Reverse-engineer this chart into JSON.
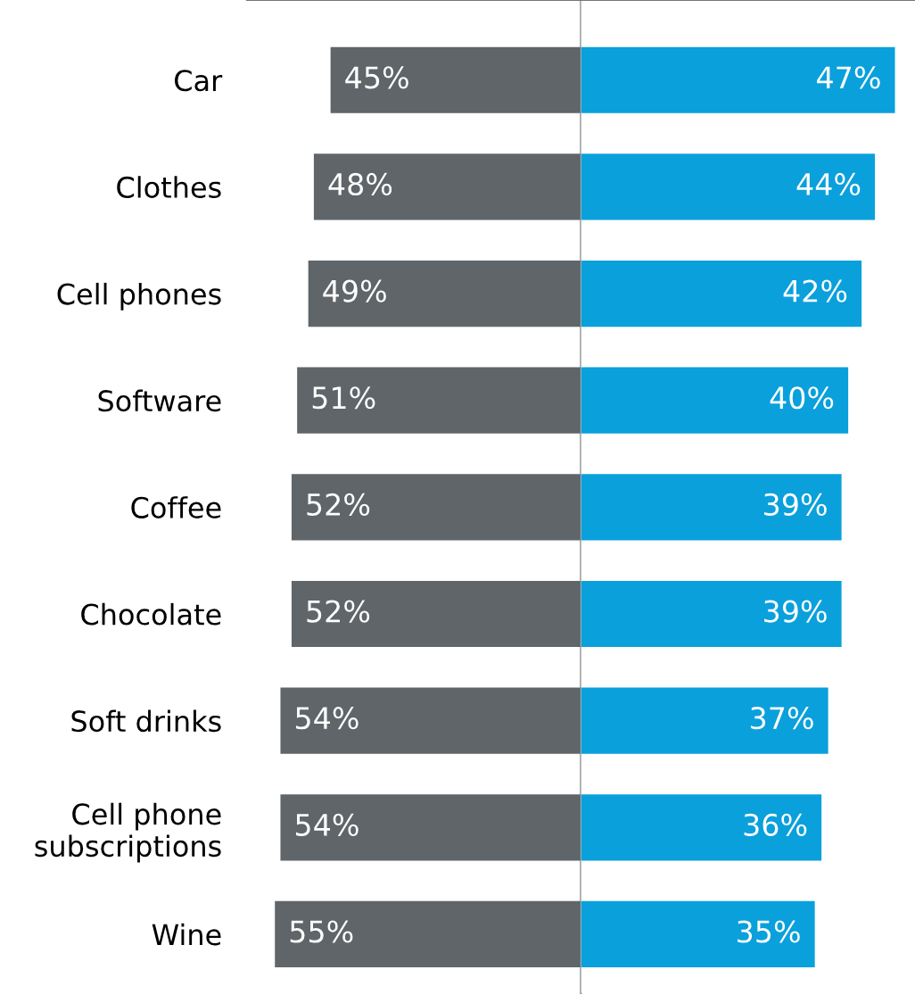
{
  "chart_data": [
    {
      "type": "bar",
      "orientation": "horizontal",
      "xlim": [
        60,
        0
      ],
      "tick_labels": "y",
      "grid": false,
      "legend": false,
      "categories": [
        "Car",
        "Clothes",
        "Cell phones",
        "Software",
        "Coffee",
        "Chocolate",
        "Soft drinks",
        "Cell phone\nsubscriptions",
        "Wine"
      ],
      "series": [
        {
          "color": "#5f6569",
          "values": [
            45,
            48,
            49,
            51,
            52,
            52,
            54,
            54,
            55
          ],
          "value_labels": [
            "45%",
            "48%",
            "49%",
            "51%",
            "52%",
            "52%",
            "54%",
            "54%",
            "55%"
          ]
        }
      ]
    },
    {
      "type": "bar",
      "orientation": "horizontal",
      "xlim": [
        0,
        50
      ],
      "tick_labels": false,
      "grid": false,
      "legend": false,
      "categories": [
        null,
        null,
        null,
        null,
        null,
        null,
        null,
        null,
        null
      ],
      "series": [
        {
          "color": "#0aa0dc",
          "values": [
            47,
            44,
            42,
            40,
            39,
            39,
            37,
            36,
            35
          ],
          "value_labels": [
            "47%",
            "44%",
            "42%",
            "40%",
            "39%",
            "39%",
            "37%",
            "36%",
            "35%"
          ]
        }
      ]
    }
  ]
}
